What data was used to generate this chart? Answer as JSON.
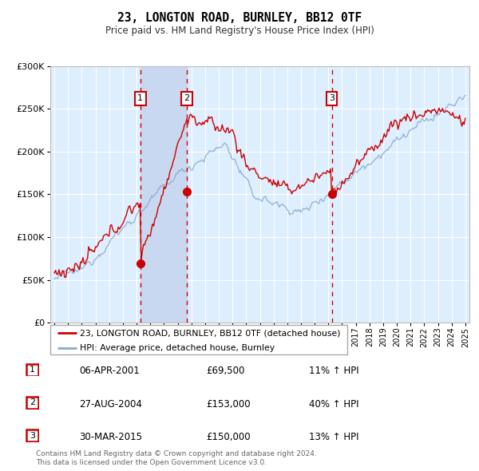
{
  "title": "23, LONGTON ROAD, BURNLEY, BB12 0TF",
  "subtitle": "Price paid vs. HM Land Registry's House Price Index (HPI)",
  "red_label": "23, LONGTON ROAD, BURNLEY, BB12 0TF (detached house)",
  "blue_label": "HPI: Average price, detached house, Burnley",
  "footer1": "Contains HM Land Registry data © Crown copyright and database right 2024.",
  "footer2": "This data is licensed under the Open Government Licence v3.0.",
  "transactions": [
    {
      "num": 1,
      "date": "06-APR-2001",
      "price": 69500,
      "hpi_pct": "11% ↑ HPI"
    },
    {
      "num": 2,
      "date": "27-AUG-2004",
      "price": 153000,
      "hpi_pct": "40% ↑ HPI"
    },
    {
      "num": 3,
      "date": "30-MAR-2015",
      "price": 150000,
      "hpi_pct": "13% ↑ HPI"
    }
  ],
  "transaction_dates": [
    2001.27,
    2004.66,
    2015.25
  ],
  "transaction_prices": [
    69500,
    153000,
    150000
  ],
  "ylim": [
    0,
    300000
  ],
  "xlim_start": 1994.7,
  "xlim_end": 2025.3,
  "background_color": "#ffffff",
  "plot_bg_color": "#ddeeff",
  "grid_color": "#ffffff",
  "red_color": "#cc0000",
  "blue_color": "#88aacc",
  "vline_color": "#cc0000",
  "highlight_color": "#c8d8f0"
}
